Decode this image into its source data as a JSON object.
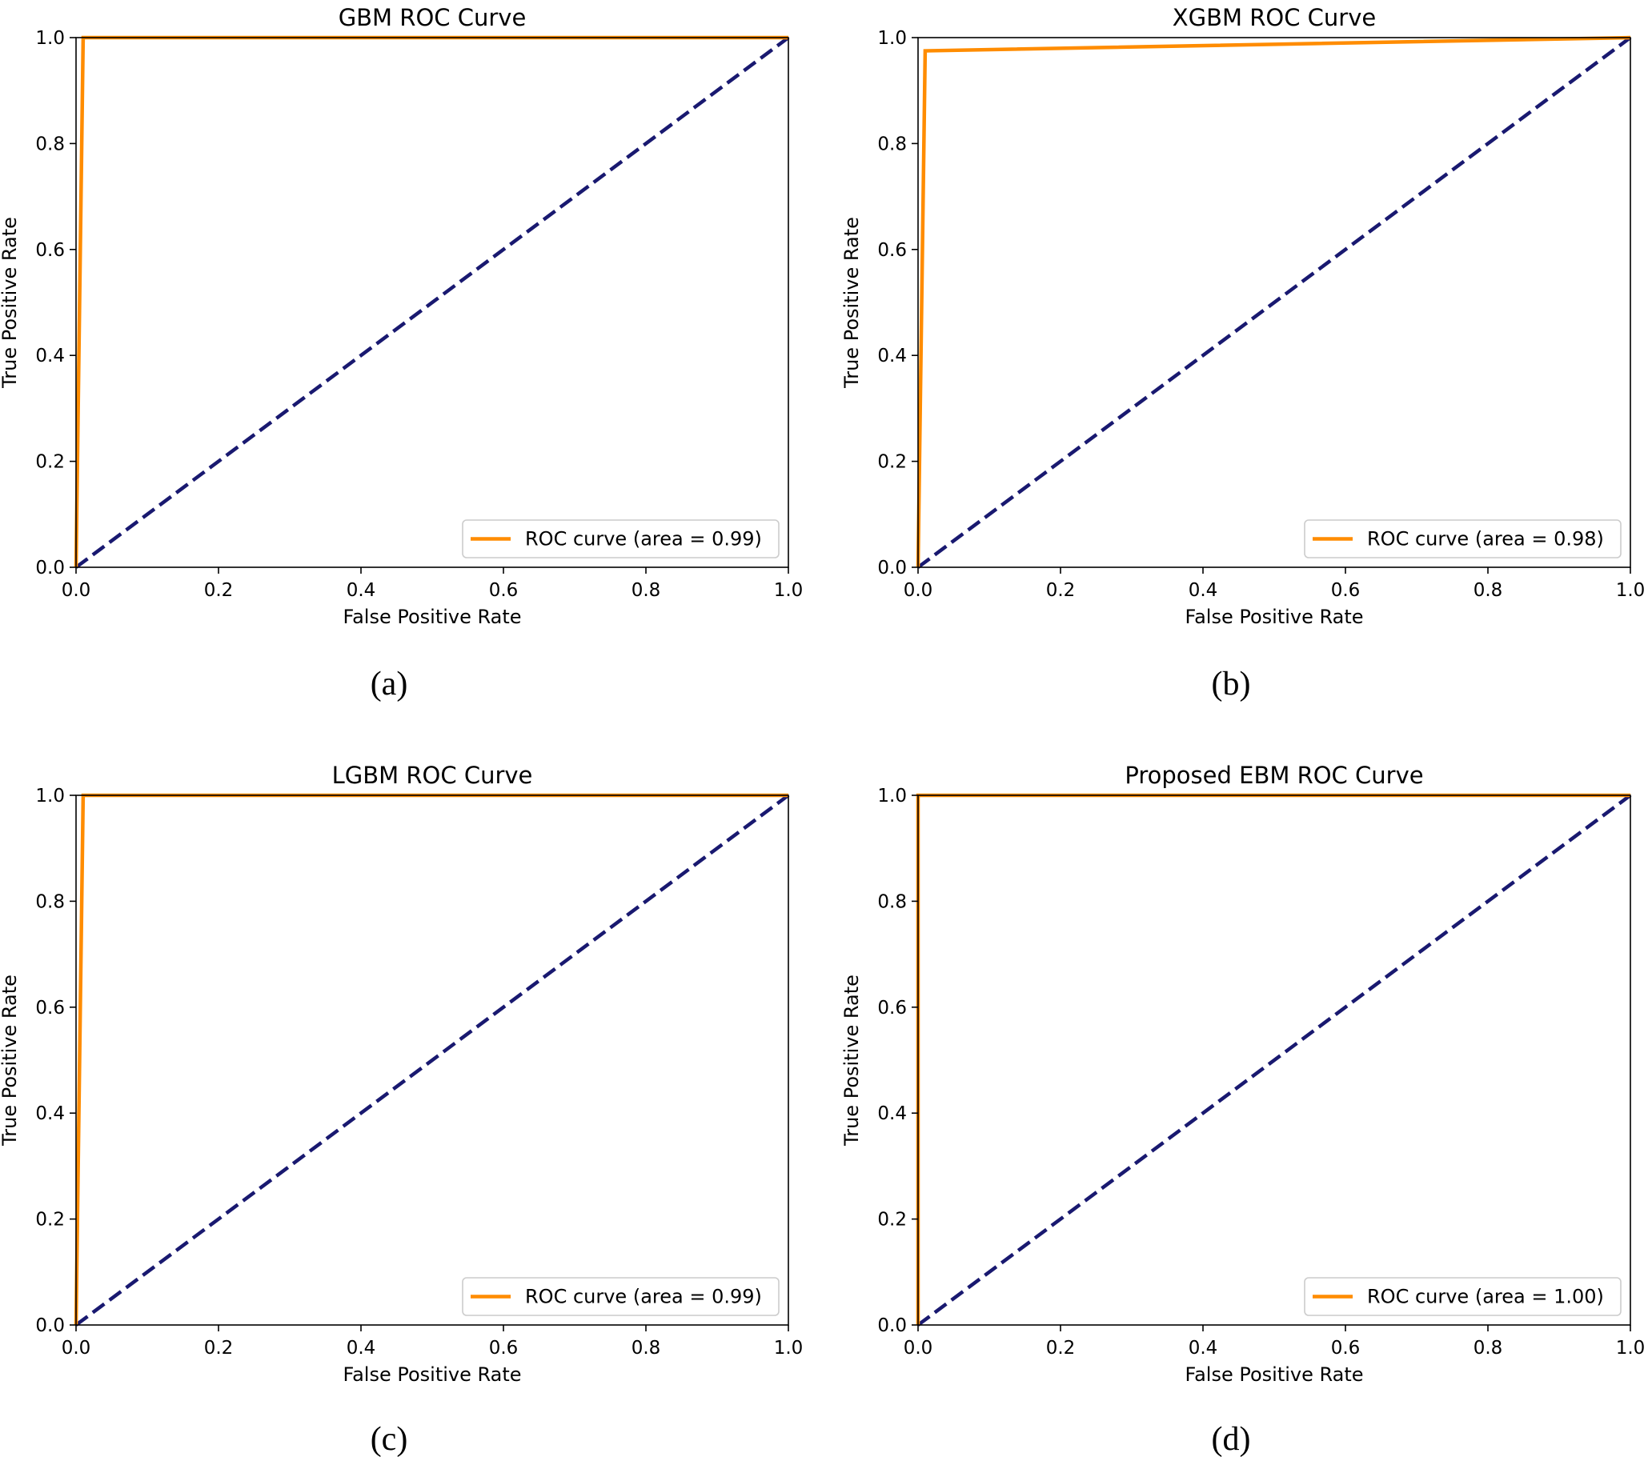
{
  "colors": {
    "roc": "#FF8C00",
    "diagonal": "#191970",
    "axes": "#000000",
    "background": "#FFFFFF",
    "legend_border": "#CCCCCC"
  },
  "chart_data": [
    {
      "type": "line",
      "caption": "(a)",
      "title": "GBM ROC Curve",
      "xlabel": "False Positive Rate",
      "ylabel": "True Positive Rate",
      "xlim": [
        0.0,
        1.0
      ],
      "ylim": [
        0.0,
        1.0
      ],
      "xticks": [
        "0.0",
        "0.2",
        "0.4",
        "0.6",
        "0.8",
        "1.0"
      ],
      "yticks": [
        "0.0",
        "0.2",
        "0.4",
        "0.6",
        "0.8",
        "1.0"
      ],
      "grid": false,
      "legend_position": "lower right",
      "series": [
        {
          "name": "ROC curve (area = 0.99)",
          "x": [
            0.0,
            0.0,
            0.01,
            1.0
          ],
          "y": [
            0.0,
            0.0,
            1.0,
            1.0
          ]
        }
      ],
      "diagonal": {
        "x": [
          0.0,
          1.0
        ],
        "y": [
          0.0,
          1.0
        ]
      }
    },
    {
      "type": "line",
      "caption": "(b)",
      "title": "XGBM ROC Curve",
      "xlabel": "False Positive Rate",
      "ylabel": "True Positive Rate",
      "xlim": [
        0.0,
        1.0
      ],
      "ylim": [
        0.0,
        1.0
      ],
      "xticks": [
        "0.0",
        "0.2",
        "0.4",
        "0.6",
        "0.8",
        "1.0"
      ],
      "yticks": [
        "0.0",
        "0.2",
        "0.4",
        "0.6",
        "0.8",
        "1.0"
      ],
      "grid": false,
      "legend_position": "lower right",
      "series": [
        {
          "name": "ROC curve (area = 0.98)",
          "x": [
            0.0,
            0.0,
            0.01,
            1.0
          ],
          "y": [
            0.0,
            0.0,
            0.975,
            1.0
          ]
        }
      ],
      "diagonal": {
        "x": [
          0.0,
          1.0
        ],
        "y": [
          0.0,
          1.0
        ]
      }
    },
    {
      "type": "line",
      "caption": "(c)",
      "title": "LGBM ROC Curve",
      "xlabel": "False Positive Rate",
      "ylabel": "True Positive Rate",
      "xlim": [
        0.0,
        1.0
      ],
      "ylim": [
        0.0,
        1.0
      ],
      "xticks": [
        "0.0",
        "0.2",
        "0.4",
        "0.6",
        "0.8",
        "1.0"
      ],
      "yticks": [
        "0.0",
        "0.2",
        "0.4",
        "0.6",
        "0.8",
        "1.0"
      ],
      "grid": false,
      "legend_position": "lower right",
      "series": [
        {
          "name": "ROC curve (area = 0.99)",
          "x": [
            0.0,
            0.0,
            0.01,
            1.0
          ],
          "y": [
            0.0,
            0.0,
            1.0,
            1.0
          ]
        }
      ],
      "diagonal": {
        "x": [
          0.0,
          1.0
        ],
        "y": [
          0.0,
          1.0
        ]
      }
    },
    {
      "type": "line",
      "caption": "(d)",
      "title": "Proposed EBM ROC Curve",
      "xlabel": "False Positive Rate",
      "ylabel": "True Positive Rate",
      "xlim": [
        0.0,
        1.0
      ],
      "ylim": [
        0.0,
        1.0
      ],
      "xticks": [
        "0.0",
        "0.2",
        "0.4",
        "0.6",
        "0.8",
        "1.0"
      ],
      "yticks": [
        "0.0",
        "0.2",
        "0.4",
        "0.6",
        "0.8",
        "1.0"
      ],
      "grid": false,
      "legend_position": "lower right",
      "series": [
        {
          "name": "ROC curve (area = 1.00)",
          "x": [
            0.0,
            0.0,
            1.0
          ],
          "y": [
            0.0,
            1.0,
            1.0
          ]
        }
      ],
      "diagonal": {
        "x": [
          0.0,
          1.0
        ],
        "y": [
          0.0,
          1.0
        ]
      }
    }
  ]
}
